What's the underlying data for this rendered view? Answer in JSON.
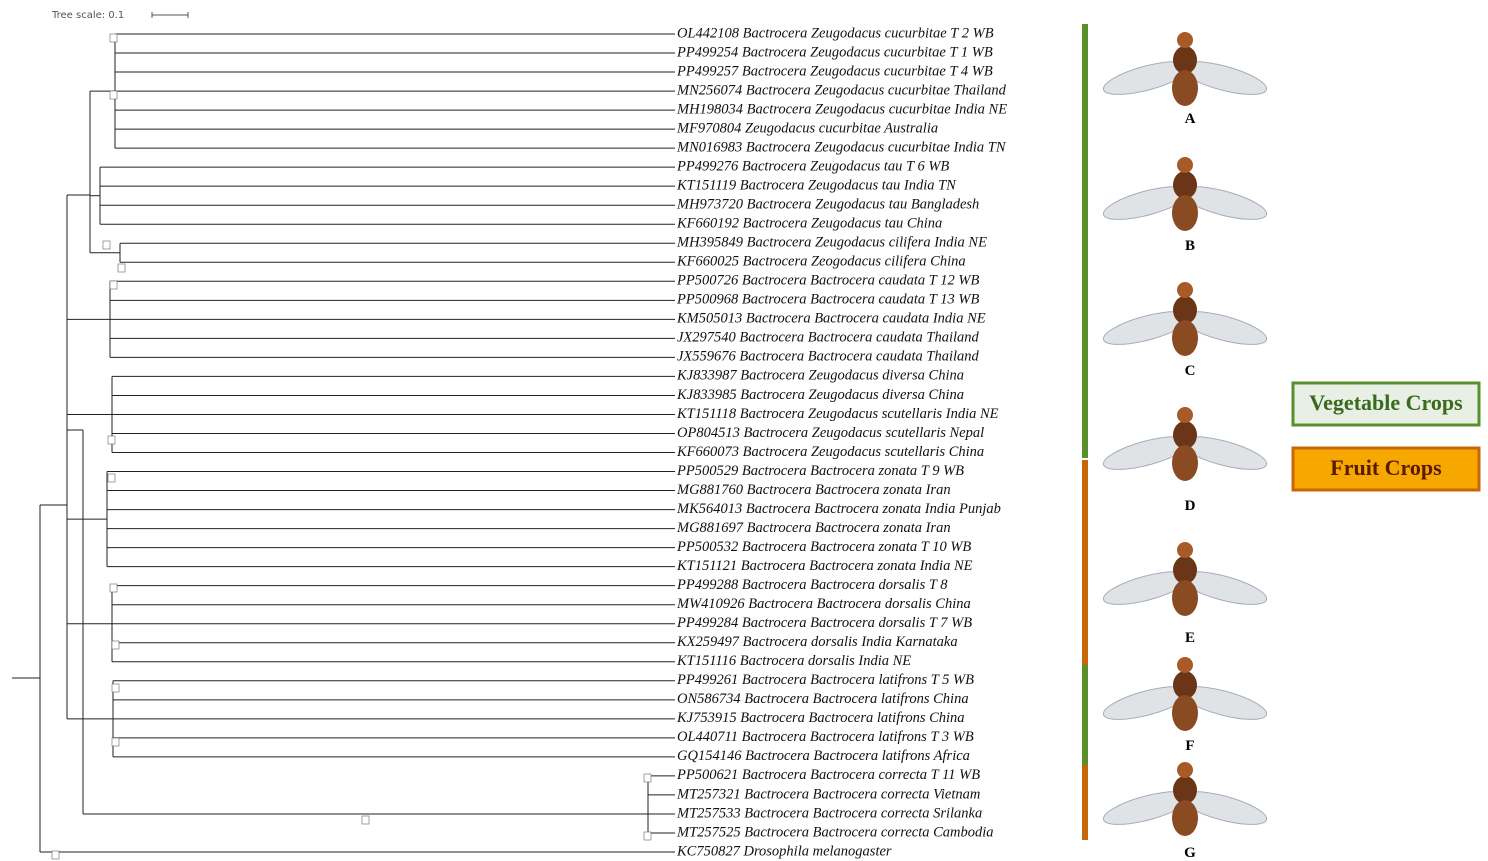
{
  "header": {
    "tree_scale": "Tree scale: 0.1"
  },
  "leaves": [
    "OL442108 Bactrocera Zeugodacus cucurbitae T 2 WB",
    "PP499254 Bactrocera Zeugodacus cucurbitae T 1 WB",
    "PP499257 Bactrocera Zeugodacus cucurbitae T 4 WB",
    "MN256074 Bactrocera Zeugodacus cucurbitae Thailand",
    "MH198034 Bactrocera Zeugodacus cucurbitae India NE",
    "MF970804 Zeugodacus cucurbitae Australia",
    "MN016983 Bactrocera Zeugodacus cucurbitae India TN",
    "PP499276 Bactrocera Zeugodacus tau T 6 WB",
    "KT151119 Bactrocera Zeugodacus tau India TN",
    "MH973720 Bactrocera Zeugodacus tau Bangladesh",
    "KF660192 Bactrocera Zeugodacus tau China",
    "MH395849 Bactrocera Zeugodacus cilifera India NE",
    "KF660025 Bactrocera Zeogodacus cilifera China",
    "PP500726 Bactrocera Bactrocera caudata T 12 WB",
    "PP500968 Bactrocera Bactrocera caudata T 13 WB",
    "KM505013 Bactrocera Bactrocera caudata India NE",
    "JX297540 Bactrocera Bactrocera caudata Thailand",
    "JX559676 Bactrocera Bactrocera caudata Thailand",
    "KJ833987 Bactrocera Zeugodacus diversa China",
    "KJ833985 Bactrocera Zeugodacus diversa China",
    "KT151118 Bactrocera Zeugodacus scutellaris India NE",
    "OP804513 Bactrocera Zeugodacus scutellaris Nepal",
    "KF660073 Bactrocera Zeugodacus scutellaris China",
    "PP500529 Bactrocera Bactrocera zonata T 9 WB",
    "MG881760 Bactrocera Bactrocera zonata Iran",
    "MK564013 Bactrocera Bactrocera zonata India Punjab",
    "MG881697 Bactrocera Bactrocera zonata Iran",
    "PP500532 Bactrocera Bactrocera zonata T 10 WB",
    "KT151121 Bactrocera Bactrocera zonata India NE",
    "PP499288 Bactrocera Bactrocera dorsalis T 8",
    "MW410926 Bactrocera Bactrocera dorsalis China",
    "PP499284 Bactrocera Bactrocera dorsalis T 7 WB",
    "KX259497 Bactrocera dorsalis India Karnataka",
    "KT151116 Bactrocera dorsalis India NE",
    "PP499261 Bactrocera Bactrocera latifrons T 5 WB",
    "ON586734 Bactrocera Bactrocera latifrons China",
    "KJ753915 Bactrocera Bactrocera latifrons China",
    "OL440711 Bactrocera Bactrocera latifrons T 3 WB",
    "GQ154146 Bactrocera Bactrocera latifrons Africa",
    "PP500621 Bactrocera Bactrocera correcta T 11 WB",
    "MT257321 Bactrocera Bactrocera correcta Vietnam",
    "MT257533 Bactrocera Bactrocera correcta Srilanka",
    "MT257525 Bactrocera Bactrocera correcta Cambodia",
    "KC750827 Drosophila melanogaster"
  ],
  "panels": [
    "A",
    "B",
    "C",
    "D",
    "E",
    "F",
    "G"
  ],
  "legend": [
    "Vegetable Crops",
    "Fruit Crops"
  ]
}
